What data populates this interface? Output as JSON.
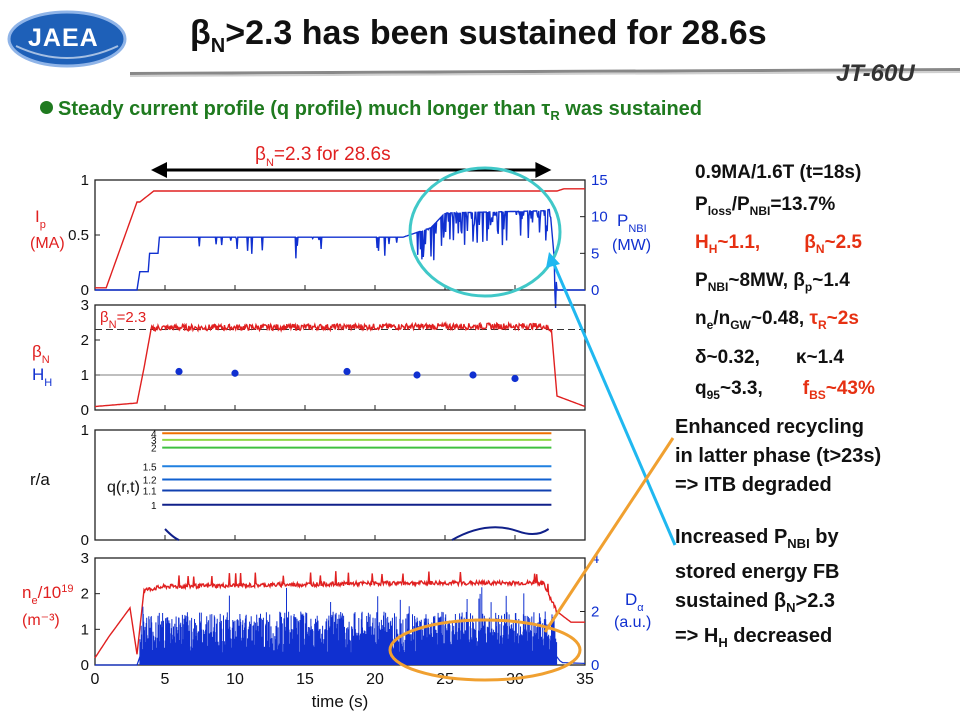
{
  "header": {
    "title_pre": "β",
    "title_sub": "N",
    "title_post": ">2.3 has been sustained for 28.6s",
    "logo_text": "JAEA",
    "device": "JT-60U"
  },
  "bullet": {
    "pre": "Steady current profile (q profile) much longer than ",
    "tau": "τ",
    "tau_sub": "R",
    "post": " was sustained"
  },
  "params": {
    "l1": "0.9MA/1.6T (t=18s)",
    "l2_a": "P",
    "l2_a_sub": "loss",
    "l2_b": "/P",
    "l2_b_sub": "NBI",
    "l2_c": "=13.7%",
    "l3_a": "H",
    "l3_a_sub": "H",
    "l3_b": "~1.1,",
    "l3_c": "β",
    "l3_c_sub": "N",
    "l3_d": "~2.5",
    "l4_a": "P",
    "l4_a_sub": "NBI",
    "l4_b": "~8MW, ",
    "l4_c": "β",
    "l4_c_sub": "p",
    "l4_d": "~1.4",
    "l5_a": "n",
    "l5_a_sub": "e",
    "l5_b": "/n",
    "l5_b_sub": "GW",
    "l5_c": "~0.48, ",
    "l5_d": "τ",
    "l5_d_sub": "R",
    "l5_e": "~2s",
    "l6_a": "δ~0.32,",
    "l6_b": "κ~1.4",
    "l7_a": "q",
    "l7_a_sub": "95",
    "l7_b": "~3.3,",
    "l7_c": "f",
    "l7_c_sub": "BS",
    "l7_d": "~43%"
  },
  "note1": {
    "l1": "Enhanced recycling",
    "l2": "in latter phase (t>23s)",
    "l3": "=> ITB degraded"
  },
  "note2": {
    "l1_a": "Increased P",
    "l1_sub": "NBI",
    "l1_b": " by",
    "l2": "stored energy FB",
    "l3_a": "sustained ",
    "l3_b": "β",
    "l3_sub": "N",
    "l3_c": ">2.3",
    "l4_a": "=> H",
    "l4_sub": "H",
    "l4_b": " decreased"
  },
  "chart_data": {
    "type": "line",
    "x_axis": {
      "label": "time (s)",
      "range": [
        0,
        35
      ],
      "ticks": [
        "0",
        "5",
        "10",
        "15",
        "20",
        "25",
        "30",
        "35"
      ]
    },
    "duration_annotation": {
      "pre": "β",
      "sub": "N",
      "post": "=2.3 for 28.6s",
      "x_range": [
        4,
        32.6
      ]
    },
    "panels": [
      {
        "left_label_main": "I",
        "left_label_sub": "p",
        "left_label_unit": "(MA)",
        "right_label_main": "P",
        "right_label_sub": "NBI",
        "right_label_unit": "(MW)",
        "left_ticks": [
          "0",
          "0.5",
          "1"
        ],
        "left_range": [
          0,
          1
        ],
        "right_ticks": [
          "0",
          "5",
          "10",
          "15"
        ],
        "right_range": [
          0,
          15
        ],
        "series": [
          {
            "color": "#e02020",
            "points": [
              [
                0,
                0.02
              ],
              [
                0.8,
                0.02
              ],
              [
                3,
                0.8
              ],
              [
                3.2,
                0.8
              ],
              [
                4.2,
                0.9
              ],
              [
                33,
                0.9
              ],
              [
                33.5,
                0.92
              ],
              [
                35,
                0.92
              ]
            ]
          },
          {
            "color": "#1030d0",
            "points": [
              [
                0,
                0
              ],
              [
                3,
                0
              ],
              [
                3.2,
                2.5
              ],
              [
                3.8,
                2.5
              ],
              [
                3.9,
                5
              ],
              [
                4.5,
                5
              ],
              [
                4.6,
                7.2
              ],
              [
                22,
                7.2
              ],
              [
                24,
                8.5
              ],
              [
                25,
                10.5
              ],
              [
                32,
                10.8
              ],
              [
                32.5,
                11
              ],
              [
                33,
                0
              ],
              [
                35,
                0
              ]
            ],
            "noisy": true
          }
        ]
      },
      {
        "left_label_main": "β",
        "left_label_sub": "N",
        "left_label2_main": "H",
        "left_label2_sub": "H",
        "left_ticks": [
          "0",
          "1",
          "2",
          "3"
        ],
        "left_range": [
          0,
          3
        ],
        "annotation": {
          "pre": "β",
          "sub": "N",
          "post": "=2.3",
          "y": 2.3
        },
        "series": [
          {
            "color": "#e02020",
            "points": [
              [
                0,
                0.1
              ],
              [
                3,
                0.2
              ],
              [
                3.5,
                1.2
              ],
              [
                4,
                2.3
              ],
              [
                4.5,
                2.35
              ],
              [
                32,
                2.4
              ],
              [
                32.6,
                2.3
              ],
              [
                33,
                0.4
              ],
              [
                35,
                0.1
              ]
            ],
            "noisy": true
          },
          {
            "color": "#1030d0",
            "markers": [
              [
                6,
                1.1
              ],
              [
                10,
                1.05
              ],
              [
                18,
                1.1
              ],
              [
                23,
                1.0
              ],
              [
                27,
                1.0
              ],
              [
                30,
                0.9
              ]
            ]
          }
        ]
      },
      {
        "left_label_main": "r/a",
        "profile_label": "q(r,t)",
        "left_ticks": [
          "0",
          "1"
        ],
        "left_range": [
          0,
          1
        ],
        "contour_labels": [
          "4",
          "3",
          "2",
          "1.5",
          "1.2",
          "1.1",
          "1"
        ],
        "series": [
          {
            "color": "#f07000",
            "level": 0.97
          },
          {
            "color": "#8ed848",
            "level": 0.91
          },
          {
            "color": "#40c040",
            "level": 0.84
          },
          {
            "color": "#2080e0",
            "level": 0.67
          },
          {
            "color": "#1060d0",
            "level": 0.55
          },
          {
            "color": "#1040b0",
            "level": 0.45
          },
          {
            "color": "#10208a",
            "level": 0.32
          }
        ]
      },
      {
        "left_label_main": "n",
        "left_label_sub": "e",
        "left_label_sup": "19",
        "left_label_pre": "/10",
        "left_label_unit": "(m⁻³)",
        "right_label_main": "D",
        "right_label_sub": "α",
        "right_label_unit": "(a.u.)",
        "left_ticks": [
          "0",
          "1",
          "2",
          "3"
        ],
        "left_range": [
          0,
          3
        ],
        "right_ticks": [
          "0",
          "2",
          "4"
        ],
        "right_range": [
          0,
          4
        ],
        "series": [
          {
            "color": "#e02020",
            "points": [
              [
                0,
                0.2
              ],
              [
                1,
                0.8
              ],
              [
                2.5,
                1.6
              ],
              [
                3,
                0.3
              ],
              [
                3.5,
                2.1
              ],
              [
                5,
                2.2
              ],
              [
                22,
                2.3
              ],
              [
                32,
                2.3
              ],
              [
                33,
                1.5
              ],
              [
                34,
                1.2
              ],
              [
                35,
                1.2
              ]
            ],
            "noisy": true
          },
          {
            "color": "#1030d0",
            "points": [
              [
                0,
                0
              ],
              [
                3,
                0
              ],
              [
                3.2,
                1.0
              ],
              [
                33,
                1.0
              ],
              [
                33.3,
                0.3
              ],
              [
                35,
                0.2
              ]
            ],
            "spiky": true
          }
        ]
      }
    ]
  }
}
